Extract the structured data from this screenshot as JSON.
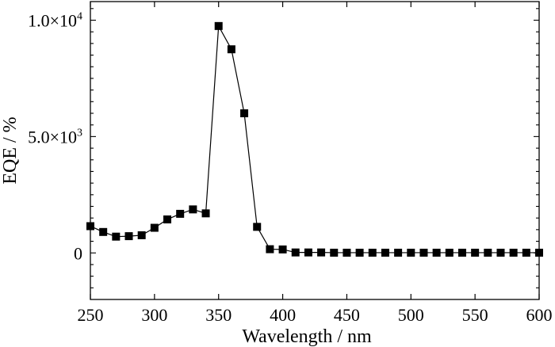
{
  "chart_data": {
    "type": "line",
    "xlabel": "Wavelength / nm",
    "ylabel": "EQE / %",
    "xlim": [
      250,
      600
    ],
    "ylim": [
      -2000,
      10800
    ],
    "grid": false,
    "legend": "none",
    "marker": "square",
    "series_color": "#000000",
    "x_ticks": [
      {
        "value": 250,
        "label": "250"
      },
      {
        "value": 300,
        "label": "300"
      },
      {
        "value": 350,
        "label": "350"
      },
      {
        "value": 400,
        "label": "400"
      },
      {
        "value": 450,
        "label": "450"
      },
      {
        "value": 500,
        "label": "500"
      },
      {
        "value": 550,
        "label": "550"
      },
      {
        "value": 600,
        "label": "600"
      }
    ],
    "y_ticks": [
      {
        "value": 0,
        "label": "0",
        "exp": ""
      },
      {
        "value": 5000,
        "label": "5.0×10",
        "exp": "3"
      },
      {
        "value": 10000,
        "label": "1.0×10",
        "exp": "4"
      }
    ],
    "series": [
      {
        "x": [
          250,
          260,
          270,
          280,
          290,
          300,
          310,
          320,
          330,
          340,
          350,
          360,
          370,
          380,
          390,
          400,
          410,
          420,
          430,
          440,
          450,
          460,
          470,
          480,
          490,
          500,
          510,
          520,
          530,
          540,
          550,
          560,
          570,
          580,
          590,
          600
        ],
        "y": [
          1150,
          900,
          700,
          720,
          760,
          1080,
          1440,
          1680,
          1870,
          1700,
          9750,
          8750,
          6000,
          1120,
          160,
          150,
          20,
          20,
          20,
          10,
          10,
          10,
          10,
          10,
          10,
          10,
          10,
          10,
          10,
          10,
          10,
          10,
          10,
          10,
          10,
          10
        ]
      }
    ]
  }
}
